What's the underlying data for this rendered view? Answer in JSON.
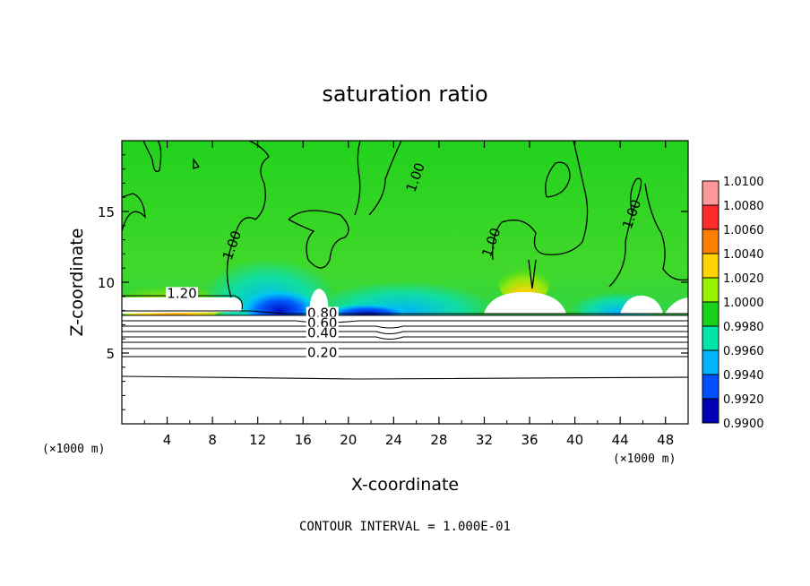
{
  "chart_data": {
    "type": "heatmap",
    "title": "saturation ratio",
    "xlabel": "X-coordinate",
    "ylabel": "Z-coordinate",
    "x_unit_left": "(×1000 m)",
    "x_unit_right": "(×1000 m)",
    "xlim": [
      0,
      50
    ],
    "ylim": [
      0,
      20
    ],
    "x_ticks": [
      "4",
      "8",
      "12",
      "16",
      "20",
      "24",
      "28",
      "32",
      "36",
      "40",
      "44",
      "48"
    ],
    "y_ticks": [
      "5",
      "10",
      "15"
    ],
    "colorbar": {
      "labels": [
        "1.0100",
        "1.0080",
        "1.0060",
        "1.0040",
        "1.0020",
        "1.0000",
        "0.9980",
        "0.9960",
        "0.9940",
        "0.9920",
        "0.9900"
      ],
      "colors": [
        "#ff9999",
        "#ff2a2a",
        "#ff7f00",
        "#ffd400",
        "#99f000",
        "#1ad21a",
        "#00e6aa",
        "#00b4ff",
        "#0050ff",
        "#0000b4",
        "#5a0096"
      ]
    },
    "contour_labels": [
      {
        "text": "1.20",
        "x": 5.3,
        "z": 8.9
      },
      {
        "text": "1.00",
        "x": 10.1,
        "z": 12.5
      },
      {
        "text": "1.00",
        "x": 26.3,
        "z": 17.3
      },
      {
        "text": "1.00",
        "x": 33.0,
        "z": 12.7
      },
      {
        "text": "1.00",
        "x": 45.4,
        "z": 14.7
      },
      {
        "text": "0.80",
        "x": 17.7,
        "z": 7.5
      },
      {
        "text": "0.60",
        "x": 17.7,
        "z": 6.8
      },
      {
        "text": "0.40",
        "x": 17.7,
        "z": 6.1
      },
      {
        "text": "0.20",
        "x": 17.7,
        "z": 4.7
      }
    ],
    "contour_interval": "CONTOUR INTERVAL = 1.000E-01"
  }
}
